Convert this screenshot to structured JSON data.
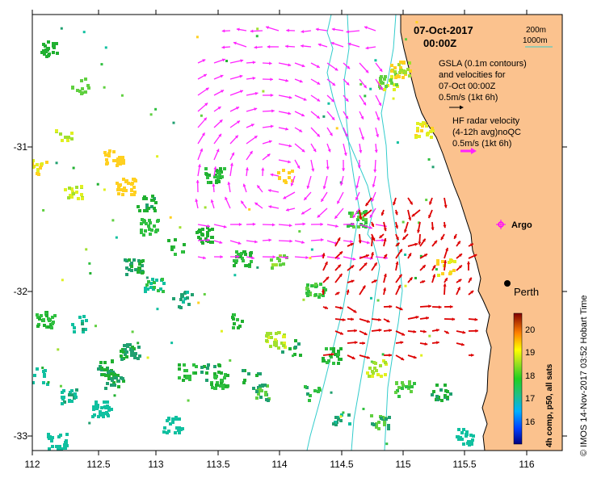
{
  "map": {
    "date": "07-Oct-2017",
    "time": "00:00Z",
    "depth_labels": [
      "200m",
      "1000m"
    ],
    "gsla_text": [
      "GSLA (0.1m contours)",
      "and velocities for",
      "07-Oct 00:00Z",
      "0.5m/s (1kt 6h)"
    ],
    "hf_text": [
      "HF radar velocity",
      "(4-12h avg)noQC",
      "0.5m/s (1kt 6h)"
    ],
    "argo_label": "Argo",
    "city_label": "Perth",
    "x_ticks": [
      "112",
      "112.5",
      "113",
      "113.5",
      "114",
      "114.5",
      "115",
      "115.5",
      "116"
    ],
    "y_ticks": [
      "-31",
      "-32",
      "-33"
    ],
    "colorbar_ticks": [
      "20",
      "19",
      "18",
      "17",
      "16"
    ],
    "colorbar_title": "4h comp, p50, all sats",
    "credit": "© IMOS 14-Nov-2017 03:52 Hobart Time",
    "colors": {
      "land": "#fbc28e",
      "bathymetry": "#33cccc",
      "gsla_arrow": "#ff22ff",
      "hf_arrow": "#dd0000",
      "argo": "#ff00ff"
    }
  }
}
